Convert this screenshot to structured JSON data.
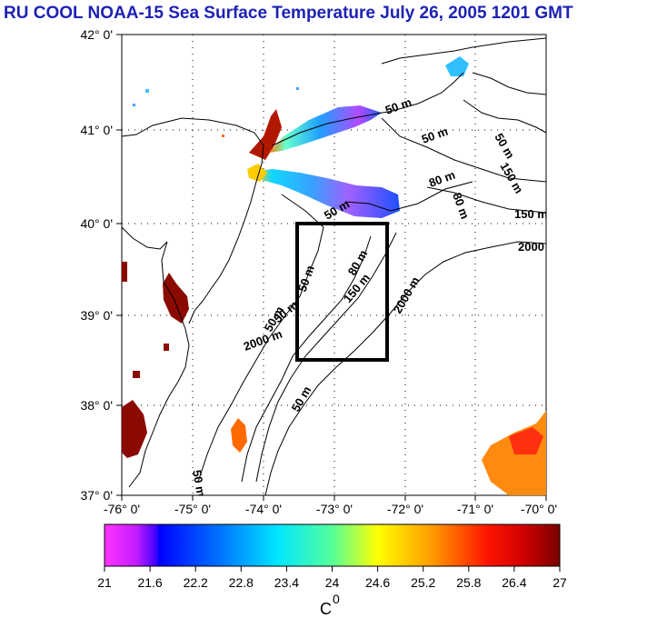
{
  "title": "RU COOL  NOAA-15 Sea Surface Temperature July 26, 2005 1201 GMT",
  "map": {
    "lat_ticks": [
      "42° 0'",
      "41° 0'",
      "40° 0'",
      "39° 0'",
      "38° 0'",
      "37° 0'"
    ],
    "lon_ticks": [
      "-76° 0'",
      "-75° 0'",
      "-74° 0'",
      "-73° 0'",
      "-72° 0'",
      "-71° 0'",
      "-70° 0'"
    ],
    "contour_labels": [
      "50 m",
      "50 m",
      "50 m",
      "150 m",
      "80 m",
      "80 m",
      "150 m",
      "50 m",
      "80 m",
      "150 m",
      "2000",
      "2000 m",
      "50 m",
      "50 m",
      "50 m",
      "2000 m",
      "50 m",
      "50 m"
    ]
  },
  "colorbar": {
    "ticks": [
      "21",
      "21.6",
      "22.2",
      "22.8",
      "23.4",
      "24",
      "24.6",
      "25.2",
      "25.8",
      "26.4",
      "27"
    ],
    "unit": "C",
    "unit_sup": "0"
  },
  "colors": {
    "title": "#1d22b4",
    "land_water_line": "#000000"
  }
}
